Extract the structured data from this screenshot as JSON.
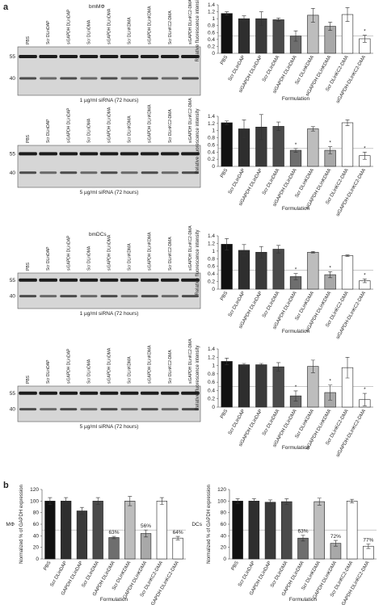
{
  "panels": [
    "a",
    "b"
  ],
  "sections": [
    "bmMΦ",
    "bmDCs"
  ],
  "blots": [
    {
      "lanes": [
        "PBS",
        "Scr DLinDAP",
        "siGAPDH DLinDAP",
        "Scr DLinDMA",
        "siGAPDH DLinDMA",
        "Scr DLinKDMA",
        "siGAPDH DLinKDMA",
        "Scr DLinKC2-DMA",
        "siGAPDH DLinKC2-DMA"
      ],
      "markers": [
        "55",
        "40"
      ],
      "caption": "1 µg/ml siRNA (72 hours)"
    },
    {
      "lanes": [
        "PBS",
        "Scr DLinDAP",
        "siGAPDH DLinDAP",
        "Scr DLinDMA",
        "siGAPDH DLinDMA",
        "Scr DLinKDMA",
        "siGAPDH DLinKDMA",
        "Scr DLinKC2-DMA",
        "siGAPDH DLinKC2-DMA"
      ],
      "markers": [
        "55",
        "40"
      ],
      "caption": "5 µg/ml siRNA (72 hours)"
    },
    {
      "lanes": [
        "PBS",
        "Scr DLinDAP",
        "siGAPDH DLinDAP",
        "Scr DLinDMA",
        "siGAPDH DLinDMA",
        "Scr DLinKDMA",
        "siGAPDH DLinKDMA",
        "Scr DLinKC2-DMA",
        "siGAPDH DLinKC2-DMA"
      ],
      "markers": [
        "55",
        "40"
      ],
      "caption": "1 µg/ml siRNA (72 hours)"
    },
    {
      "lanes": [
        "PBS",
        "Scr DLinDAP",
        "siGAPDH DLinDAP",
        "Scr DLinDMA",
        "siGAPDH DLinDMA",
        "Scr DLinKDMA",
        "siGAPDH DLinKDMA",
        "Scr DLinKC2-DMA",
        "siGAPDH DLinKC2-DMA"
      ],
      "markers": [
        "55",
        "40"
      ],
      "caption": "5 µg/ml siRNA (72 hours)"
    }
  ],
  "chart_data": [
    {
      "type": "bar",
      "y_label": "Relative fluorescence intensity",
      "x_label": "Formulation",
      "categories": [
        "PBS",
        "Scr DLinDAP",
        "siGAPDH DLinDAP",
        "Scr DLinDMA",
        "siGAPDH DLinDMA",
        "Scr DLinKDMA",
        "siGAPDH DLinKDMA",
        "Scr DLinKC2-DMA",
        "siGAPDH-DLinKC2-DMA"
      ],
      "values": [
        1.15,
        1.0,
        1.0,
        0.97,
        0.5,
        1.1,
        0.78,
        1.12,
        0.42
      ],
      "errors": [
        0.05,
        0.08,
        0.2,
        0.05,
        0.15,
        0.2,
        0.12,
        0.2,
        0.1
      ],
      "annotations": [
        null,
        null,
        null,
        null,
        null,
        null,
        null,
        null,
        "*"
      ],
      "colors": [
        "#111111",
        "#2e2e2e",
        "#3a3a3a",
        "#4a4a4a",
        "#6e6e6e",
        "#bdbdbd",
        "#a8a8a8",
        "#ffffff",
        "#ffffff"
      ],
      "reference_line": 0.5,
      "ylim": [
        0,
        1.4
      ],
      "yticks": [
        0,
        0.2,
        0.4,
        0.6,
        0.8,
        1,
        1.2,
        1.4
      ]
    },
    {
      "type": "bar",
      "y_label": "Relative fluorescence intensity",
      "x_label": "Formulation",
      "categories": [
        "PBS",
        "Scr DLinDAP",
        "siGAPDH DLinDAP",
        "Scr DLinDMA",
        "siGAPDH DLinDMA",
        "Scr DLinKDMA",
        "siGAPDH DLinKDMA",
        "Scr DLinKC2-DMA",
        "siGAPDH-DLinKC2-DMA"
      ],
      "values": [
        1.22,
        1.05,
        1.1,
        1.12,
        0.45,
        1.05,
        0.45,
        1.22,
        0.3
      ],
      "errors": [
        0.05,
        0.25,
        0.35,
        0.12,
        0.05,
        0.06,
        0.1,
        0.08,
        0.1
      ],
      "annotations": [
        null,
        null,
        null,
        null,
        "*",
        null,
        "*",
        null,
        "*"
      ],
      "colors": [
        "#111111",
        "#2e2e2e",
        "#3a3a3a",
        "#4a4a4a",
        "#6e6e6e",
        "#bdbdbd",
        "#a8a8a8",
        "#ffffff",
        "#ffffff"
      ],
      "reference_line": 0.5,
      "ylim": [
        0,
        1.4
      ],
      "yticks": [
        0,
        0.2,
        0.4,
        0.6,
        0.8,
        1,
        1.2,
        1.4
      ]
    },
    {
      "type": "bar",
      "y_label": "Relative fluorescence intensity",
      "x_label": "Formulation",
      "categories": [
        "PBS",
        "Scr DLinDAP",
        "siGAPDH DLinDAP",
        "Scr DLinDMA",
        "siGAPDH DLinDMA",
        "Scr DLinKDMA",
        "siGAPDH DLinKDMA",
        "Scr DLinKC2-DMA",
        "siGAPDH-DLinKC2-DMA"
      ],
      "values": [
        1.18,
        1.02,
        0.97,
        1.05,
        0.33,
        0.97,
        0.38,
        0.88,
        0.22
      ],
      "errors": [
        0.15,
        0.15,
        0.15,
        0.1,
        0.08,
        0.02,
        0.08,
        0.02,
        0.05
      ],
      "annotations": [
        null,
        null,
        null,
        null,
        "*",
        null,
        "*",
        null,
        "*"
      ],
      "colors": [
        "#111111",
        "#2e2e2e",
        "#3a3a3a",
        "#4a4a4a",
        "#6e6e6e",
        "#bdbdbd",
        "#a8a8a8",
        "#ffffff",
        "#ffffff"
      ],
      "reference_line": 0.5,
      "ylim": [
        0,
        1.4
      ],
      "yticks": [
        0,
        0.2,
        0.4,
        0.6,
        0.8,
        1,
        1.2,
        1.4
      ]
    },
    {
      "type": "bar",
      "y_label": "Relative fluorescence intensity",
      "x_label": "Formulation",
      "categories": [
        "PBS",
        "Scr DLinDAP",
        "siGAPDH DLinDAP",
        "Scr DLinDMA",
        "siGAPDH DLinDMA",
        "Scr DLinKDMA",
        "siGAPDH DLinKDMA",
        "Scr DLinKC2-DMA",
        "siGAPDH-DLinKC2-DMA"
      ],
      "values": [
        1.1,
        1.02,
        1.02,
        0.97,
        0.27,
        0.98,
        0.35,
        0.95,
        0.18
      ],
      "errors": [
        0.08,
        0.03,
        0.03,
        0.1,
        0.12,
        0.15,
        0.18,
        0.25,
        0.15
      ],
      "annotations": [
        null,
        null,
        null,
        null,
        "*",
        null,
        "*",
        null,
        "*"
      ],
      "colors": [
        "#111111",
        "#2e2e2e",
        "#3a3a3a",
        "#4a4a4a",
        "#6e6e6e",
        "#bdbdbd",
        "#a8a8a8",
        "#ffffff",
        "#ffffff"
      ],
      "reference_line": 0.5,
      "ylim": [
        0,
        1.4
      ],
      "yticks": [
        0,
        0.2,
        0.4,
        0.6,
        0.8,
        1,
        1.2,
        1.4
      ]
    },
    {
      "type": "bar",
      "y_label": "Normalized % of GAPDH expression",
      "group_label": "MΦ",
      "x_label": "Formulation",
      "categories": [
        "PBS",
        "Scr DLinDAP",
        "GAPDH DLinDAP",
        "Scr DLinDMA",
        "GAPDH DLinDMA",
        "Scr DLinKDMA",
        "GAPDH DLinKDMA",
        "Scr DLinKC2-DMA",
        "GAPDH DLinKC2-DMA"
      ],
      "values": [
        100,
        100,
        83,
        100,
        37,
        100,
        44,
        100,
        36
      ],
      "errors": [
        6,
        6,
        6,
        6,
        2,
        8,
        6,
        6,
        3
      ],
      "annotations": [
        null,
        null,
        null,
        null,
        "63%",
        null,
        "56%",
        null,
        "64%"
      ],
      "colors": [
        "#111111",
        "#2e2e2e",
        "#3a3a3a",
        "#4a4a4a",
        "#6e6e6e",
        "#bdbdbd",
        "#a8a8a8",
        "#ffffff",
        "#ffffff"
      ],
      "reference_line": 50,
      "ylim": [
        0,
        120
      ],
      "yticks": [
        0,
        20,
        40,
        60,
        80,
        100,
        120
      ]
    },
    {
      "type": "bar",
      "y_label": "Normalized % of GAPDH expression",
      "group_label": "DCs",
      "x_label": "Formulation",
      "categories": [
        "PBS",
        "Scr DLinDAP",
        "GAPDH DLinDAP",
        "Scr DLinDMA",
        "GAPDH DLinDMA",
        "Scr DLinKDMA",
        "GAPDH DLinKDMA",
        "Scr DLinKC2-DMA",
        "GAPDH DLinKC2-DMA"
      ],
      "values": [
        100,
        100,
        98,
        99,
        36,
        99,
        27,
        100,
        22
      ],
      "errors": [
        4,
        4,
        4,
        5,
        5,
        6,
        5,
        3,
        4
      ],
      "annotations": [
        null,
        null,
        null,
        null,
        "63%",
        null,
        "72%",
        null,
        "77%"
      ],
      "colors": [
        "#111111",
        "#2e2e2e",
        "#3a3a3a",
        "#4a4a4a",
        "#6e6e6e",
        "#bdbdbd",
        "#a8a8a8",
        "#ffffff",
        "#ffffff"
      ],
      "reference_line": 50,
      "ylim": [
        0,
        120
      ],
      "yticks": [
        0,
        20,
        40,
        60,
        80,
        100,
        120
      ]
    }
  ]
}
